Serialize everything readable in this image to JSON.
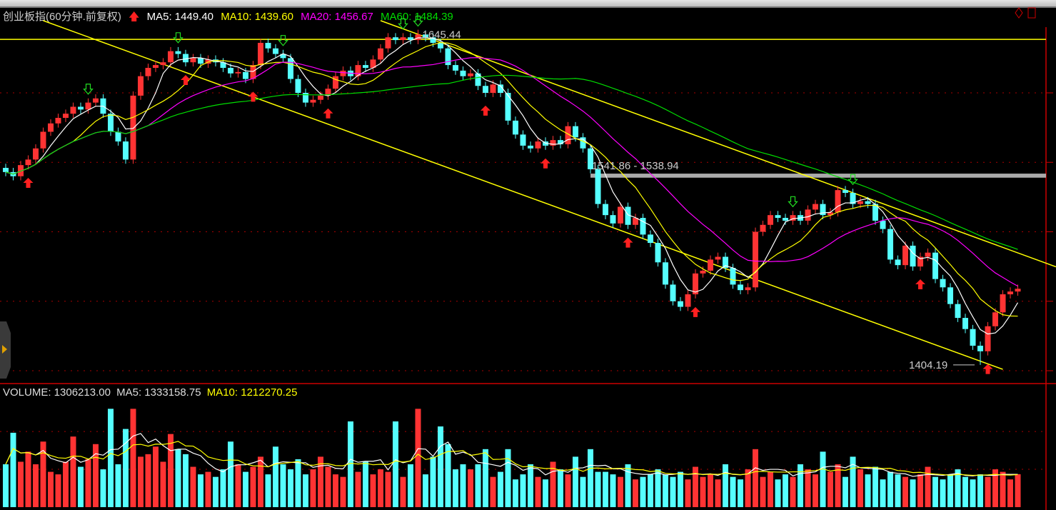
{
  "header": {
    "title": "创业板指(60分钟.前复权)",
    "ma5": "MA5: 1449.40",
    "ma10": "MA10: 1439.60",
    "ma20": "MA20: 1456.67",
    "ma60": "MA60: 1484.39"
  },
  "volume_header": {
    "volume": "VOLUME: 1306213.00",
    "ma5": "MA5: 1333158.75",
    "ma10": "MA10: 1212270.25"
  },
  "colors": {
    "up": "#ff3333",
    "down": "#55ffff",
    "ma5": "#ffffff",
    "ma10": "#ffff00",
    "ma20": "#ff00ff",
    "ma60": "#00dd00",
    "trendline": "#ffff00",
    "axis": "#cc0000"
  },
  "chart_data": {
    "type": "candlestick",
    "ylim": [
      1380,
      1660
    ],
    "price_gridlines": [
      1400,
      1450,
      1500,
      1550,
      1600
    ],
    "volume_gridlines": [
      1500000,
      3000000
    ],
    "closes": [
      1543,
      1540,
      1548,
      1552,
      1560,
      1572,
      1578,
      1582,
      1585,
      1590,
      1588,
      1593,
      1596,
      1585,
      1572,
      1565,
      1552,
      1598,
      1612,
      1618,
      1620,
      1622,
      1630,
      1628,
      1622,
      1625,
      1621,
      1624,
      1622,
      1618,
      1614,
      1615,
      1610,
      1620,
      1636,
      1632,
      1628,
      1625,
      1610,
      1600,
      1593,
      1595,
      1598,
      1603,
      1612,
      1616,
      1612,
      1620,
      1618,
      1624,
      1632,
      1640,
      1638,
      1640,
      1638,
      1642,
      1640,
      1636,
      1632,
      1620,
      1616,
      1612,
      1614,
      1605,
      1600,
      1606,
      1600,
      1580,
      1570,
      1562,
      1560,
      1565,
      1562,
      1566,
      1563,
      1576,
      1568,
      1560,
      1545,
      1520,
      1512,
      1506,
      1518,
      1505,
      1510,
      1498,
      1492,
      1478,
      1462,
      1450,
      1446,
      1455,
      1470,
      1472,
      1480,
      1482,
      1474,
      1462,
      1458,
      1460,
      1500,
      1505,
      1512,
      1510,
      1508,
      1512,
      1508,
      1516,
      1520,
      1512,
      1514,
      1530,
      1528,
      1520,
      1522,
      1520,
      1508,
      1502,
      1480,
      1476,
      1490,
      1475,
      1482,
      1485,
      1466,
      1460,
      1448,
      1438,
      1430,
      1418,
      1414,
      1432,
      1442,
      1455,
      1457,
      1459
    ],
    "volumes": [
      1700000,
      2950000,
      1800000,
      2200000,
      1700000,
      2600000,
      1400000,
      1300000,
      1800000,
      2800000,
      1600000,
      1900000,
      2500000,
      1500000,
      3900000,
      1700000,
      3100000,
      3900000,
      2000000,
      2100000,
      2400000,
      1800000,
      2900000,
      2300000,
      2100000,
      1600000,
      1300000,
      1400000,
      1200000,
      1500000,
      2600000,
      1700000,
      1400000,
      1600000,
      2000000,
      1300000,
      2400000,
      1700000,
      1500000,
      1900000,
      1300000,
      1500000,
      2000000,
      1600000,
      1300000,
      1200000,
      3400000,
      1400000,
      1800000,
      1300000,
      1500000,
      1400000,
      3400000,
      1200000,
      1700000,
      3900000,
      1300000,
      2000000,
      3200000,
      2500000,
      1500000,
      1700000,
      1500000,
      1700000,
      2300000,
      1200000,
      1400000,
      2300000,
      1100000,
      1300000,
      1700000,
      1200000,
      1100000,
      1800000,
      1500000,
      1300000,
      2000000,
      1200000,
      2300000,
      1400000,
      1400000,
      1300000,
      1200000,
      1700000,
      1100000,
      1200000,
      1300000,
      1500000,
      1300000,
      1200000,
      1400000,
      1100000,
      1600000,
      1200000,
      1300000,
      1100000,
      1700000,
      1200000,
      1100000,
      1500000,
      2300000,
      1200000,
      1400000,
      1100000,
      1300000,
      1200000,
      1700000,
      1500000,
      1300000,
      2200000,
      1400000,
      1700000,
      1200000,
      2000000,
      1500000,
      1300000,
      1600000,
      1100000,
      1400000,
      1300000,
      1200000,
      1100000,
      1300000,
      1600000,
      1200000,
      1100000,
      1300000,
      1500000,
      1200000,
      1100000,
      1300000,
      1200000,
      1500000,
      1400000,
      1100000,
      1306213
    ],
    "marked_high": {
      "index": 55,
      "label": "1645.44",
      "value": 1645.44
    },
    "marked_low": {
      "index": 130,
      "label": "1404.19",
      "value": 1404.19
    },
    "range_band": {
      "label": "1541.86 - 1538.94",
      "from_index": 78,
      "high": 1541.86,
      "low": 1538.94
    },
    "horizontal_line": 1638.5,
    "trendlines": [
      {
        "from": [
          5,
          1652
        ],
        "to": [
          133,
          1401
        ]
      },
      {
        "from": [
          50,
          1652
        ],
        "to": [
          140,
          1475
        ]
      }
    ],
    "buy_signals": [
      3,
      24,
      33,
      43,
      64,
      72,
      83,
      92,
      122,
      131
    ],
    "sell_signals": [
      11,
      23,
      37,
      53,
      55,
      105,
      113
    ]
  }
}
